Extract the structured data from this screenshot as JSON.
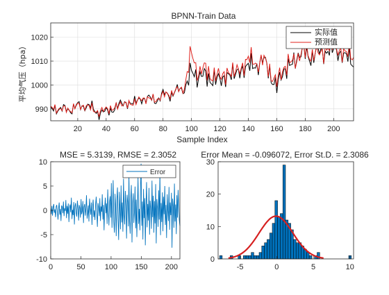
{
  "chart_data": [
    {
      "id": "train",
      "type": "line",
      "title": "BPNN-Train Data",
      "xlabel": "Sample Index",
      "ylabel": "平均气压（hpa）",
      "xlim": [
        1,
        214
      ],
      "ylim": [
        985,
        1026
      ],
      "xticks": [
        20,
        40,
        60,
        80,
        100,
        120,
        140,
        160,
        180,
        200
      ],
      "yticks": [
        990,
        1000,
        1010,
        1020
      ],
      "grid": true,
      "legend": "top-right",
      "anchors_x": [
        1,
        5,
        10,
        15,
        20,
        25,
        30,
        35,
        40,
        45,
        50,
        55,
        60,
        65,
        70,
        75,
        80,
        85,
        90,
        95,
        100,
        105,
        110,
        115,
        120,
        125,
        130,
        135,
        140,
        145,
        150,
        155,
        160,
        165,
        170,
        175,
        180,
        185,
        190,
        195,
        200,
        205,
        210,
        214
      ],
      "series": [
        {
          "name": "实际值",
          "color": "#000000",
          "values": [
            990.0,
            989.5,
            990.5,
            989.0,
            992.0,
            990.5,
            991.5,
            987.0,
            990.0,
            988.5,
            993.5,
            991.0,
            994.0,
            993.0,
            995.5,
            992.5,
            997.0,
            995.0,
            998.5,
            997.5,
            1006.0,
            1003.0,
            1004.5,
            1001.0,
            1003.5,
            1002.0,
            1006.5,
            1004.0,
            1010.0,
            1006.0,
            1012.0,
            1004.5,
            999.0,
            1006.5,
            1008.0,
            1012.5,
            1014.0,
            1010.5,
            1015.5,
            1012.0,
            1017.0,
            1010.5,
            1014.5,
            1006.0
          ]
        },
        {
          "name": "预测值",
          "color": "#e0201b",
          "values": [
            990.5,
            990.0,
            990.0,
            989.5,
            991.5,
            991.0,
            990.5,
            988.0,
            990.5,
            989.5,
            992.5,
            991.5,
            993.0,
            994.0,
            994.5,
            993.5,
            996.0,
            996.0,
            998.0,
            998.5,
            1014.0,
            1004.0,
            1008.0,
            1002.0,
            1005.5,
            1003.0,
            1007.5,
            1005.0,
            1013.0,
            1007.5,
            1011.5,
            1005.5,
            1001.0,
            1007.5,
            1009.5,
            1011.5,
            1015.0,
            1011.5,
            1014.5,
            1013.5,
            1018.5,
            1011.5,
            1016.0,
            1009.0
          ]
        }
      ]
    },
    {
      "id": "error",
      "type": "line",
      "title": "MSE = 5.3139, RMSE = 2.3052",
      "xlabel": "",
      "ylabel": "",
      "xlim": [
        0,
        214
      ],
      "ylim": [
        -10,
        10
      ],
      "xticks": [
        0,
        50,
        100,
        150,
        200
      ],
      "yticks": [
        -10,
        -5,
        0,
        5,
        10
      ],
      "grid": false,
      "legend": "top-right",
      "series": [
        {
          "name": "Error",
          "color": "#0072bd",
          "values": [
            0.4,
            -0.8,
            0.9,
            -1.1,
            0.6,
            1.3,
            -0.5,
            0.2,
            -1.4,
            0.8,
            1.1,
            -0.3,
            -1.9,
            0.5,
            1.6,
            -0.9,
            0.3,
            -2.2,
            1.0,
            0.7,
            -0.6,
            1.8,
            -1.2,
            0.4,
            -0.1,
            2.1,
            -1.6,
            0.9,
            -0.7,
            1.4,
            -2.4,
            0.6,
            1.2,
            -0.4,
            2.6,
            -1.8,
            0.1,
            -1.0,
            1.7,
            -2.9,
            0.8,
            1.5,
            -0.6,
            -1.3,
            2.0,
            0.3,
            -2.1,
            1.1,
            0.5,
            -1.5,
            2.3,
            -0.8,
            -0.2,
            1.9,
            -2.6,
            0.7,
            1.3,
            -1.1,
            0.2,
            3.1,
            -1.7,
            -0.5,
            1.0,
            -2.3,
            2.4,
            0.4,
            -0.9,
            1.6,
            -3.0,
            0.9,
            2.2,
            -1.4,
            0.0,
            -2.0,
            1.2,
            2.8,
            -0.7,
            -3.4,
            1.5,
            0.6,
            -1.2,
            2.5,
            -2.2,
            0.8,
            -0.3,
            3.3,
            -1.9,
            1.1,
            -4.1,
            0.5,
            2.6,
            -0.6,
            1.4,
            -2.8,
            4.3,
            -0.2,
            -3.1,
            1.8,
            2.9,
            -1.5,
            5.6,
            -3.6,
            1.2,
            6.2,
            -2.4,
            -4.6,
            3.4,
            0.8,
            -5.3,
            2.1,
            4.7,
            -1.8,
            -6.1,
            3.8,
            0.6,
            -3.9,
            5.1,
            -2.5,
            1.6,
            -4.4,
            6.5,
            -1.1,
            -2.9,
            4.0,
            0.9,
            -5.8,
            3.2,
            1.7,
            -3.3,
            7.4,
            -2.0,
            -4.8,
            2.7,
            5.2,
            -6.6,
            1.4,
            3.5,
            -2.6,
            -0.4,
            4.9,
            -3.7,
            2.2,
            -5.5,
            1.0,
            6.8,
            -2.8,
            0.3,
            -4.1,
            3.9,
            9.6,
            -3.2,
            1.8,
            -6.0,
            4.4,
            -1.6,
            2.5,
            -7.2,
            0.7,
            5.8,
            -3.5,
            1.3,
            -2.1,
            4.6,
            -5.0,
            2.0,
            0.5,
            -3.8,
            6.1,
            -1.4,
            3.0,
            -4.6,
            1.9,
            -2.7,
            5.4,
            -6.8,
            2.3,
            0.4,
            -3.4,
            4.1,
            -1.9,
            7.9,
            -5.1,
            1.5,
            -2.4,
            3.7,
            -4.3,
            2.8,
            -0.8,
            5.0,
            -3.0,
            1.1,
            -5.7,
            3.3,
            0.2,
            -2.2,
            4.8,
            -4.0,
            1.6,
            -1.0,
            3.6,
            -7.7,
            2.4,
            0.9,
            -3.6,
            5.5,
            -2.3,
            1.2,
            -4.9,
            3.1,
            -1.5,
            4.2,
            0.6,
            -2.0,
            -3.2
          ]
        }
      ]
    },
    {
      "id": "hist",
      "type": "bar",
      "title": "Error Mean = -0.096072, Error St.D. = 2.3086",
      "xlabel": "",
      "ylabel": "",
      "xlim": [
        -8,
        10.5
      ],
      "ylim": [
        0,
        30
      ],
      "xticks": [
        -5,
        0,
        5,
        10
      ],
      "yticks": [
        0,
        10,
        20,
        30
      ],
      "grid": false,
      "bins": {
        "start": -7.8,
        "width": 0.36
      },
      "counts": [
        1,
        0,
        0,
        0,
        1,
        0,
        0,
        1,
        0,
        1,
        1,
        1,
        2,
        1,
        1,
        2,
        4,
        5,
        6,
        8,
        11,
        18,
        13,
        14,
        29,
        12,
        11,
        9,
        6,
        5,
        5,
        4,
        3,
        2,
        1,
        0,
        1,
        2,
        0,
        0,
        0,
        0,
        0,
        0,
        0,
        0,
        0,
        0,
        0,
        1
      ],
      "bar_color": "#0072bd",
      "fit": {
        "color": "#d62020",
        "mean": -0.096072,
        "std": 2.3086,
        "peak": 13.2
      }
    }
  ]
}
